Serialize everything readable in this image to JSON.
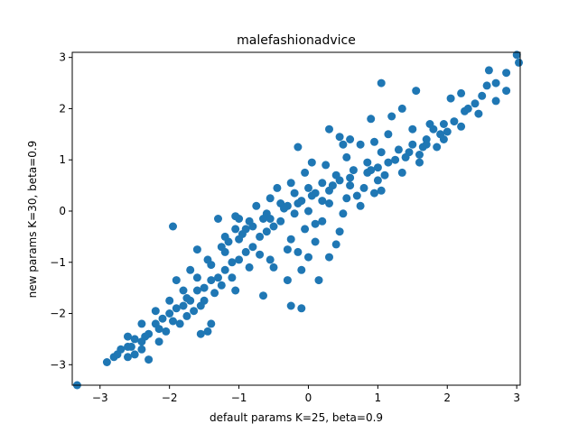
{
  "chart_data": {
    "type": "scatter",
    "title": "malefashionadvice",
    "xlabel": "default params K=25, beta=0.9",
    "ylabel": "new params K=30, beta=0.9",
    "xlim": [
      -3.4,
      3.05
    ],
    "ylim": [
      -3.4,
      3.1
    ],
    "xticks": [
      -3,
      -2,
      -1,
      0,
      1,
      2,
      3
    ],
    "yticks": [
      -3,
      -2,
      -1,
      0,
      1,
      2,
      3
    ],
    "xtick_labels": [
      "−3",
      "−2",
      "−1",
      "0",
      "1",
      "2",
      "3"
    ],
    "ytick_labels": [
      "−3",
      "−2",
      "−1",
      "0",
      "1",
      "2",
      "3"
    ],
    "grid": false,
    "marker_color": "#1f77b4",
    "series": [
      {
        "points": [
          [
            -3.33,
            -3.4
          ],
          [
            3.0,
            3.05
          ],
          [
            3.03,
            2.9
          ],
          [
            2.6,
            2.75
          ],
          [
            2.57,
            2.45
          ],
          [
            2.2,
            2.3
          ],
          [
            2.05,
            2.2
          ],
          [
            1.05,
            2.5
          ],
          [
            1.55,
            2.35
          ],
          [
            1.35,
            2.0
          ],
          [
            1.2,
            1.85
          ],
          [
            0.9,
            1.8
          ],
          [
            0.5,
            1.3
          ],
          [
            0.3,
            1.6
          ],
          [
            0.45,
            1.45
          ],
          [
            -0.15,
            1.25
          ],
          [
            0.6,
            1.4
          ],
          [
            1.15,
            1.5
          ],
          [
            1.5,
            1.6
          ],
          [
            1.75,
            1.7
          ],
          [
            2.0,
            1.55
          ],
          [
            1.95,
            1.7
          ],
          [
            2.25,
            1.95
          ],
          [
            1.8,
            1.6
          ],
          [
            1.5,
            1.3
          ],
          [
            1.3,
            1.2
          ],
          [
            1.6,
            1.1
          ],
          [
            1.7,
            1.4
          ],
          [
            1.1,
            0.7
          ],
          [
            1.0,
            0.6
          ],
          [
            1.05,
            0.4
          ],
          [
            0.9,
            0.8
          ],
          [
            0.7,
            0.3
          ],
          [
            0.6,
            0.5
          ],
          [
            0.45,
            0.6
          ],
          [
            0.3,
            0.4
          ],
          [
            0.2,
            0.2
          ],
          [
            0.1,
            0.35
          ],
          [
            0.0,
            0.0
          ],
          [
            -0.1,
            0.2
          ],
          [
            -0.2,
            -0.05
          ],
          [
            -0.3,
            0.1
          ],
          [
            -0.4,
            -0.2
          ],
          [
            -0.5,
            -0.3
          ],
          [
            -0.6,
            -0.4
          ],
          [
            -0.7,
            -0.5
          ],
          [
            -0.8,
            -0.7
          ],
          [
            -0.9,
            -0.8
          ],
          [
            -1.0,
            -0.95
          ],
          [
            -1.1,
            -1.0
          ],
          [
            -1.2,
            -1.15
          ],
          [
            -1.3,
            -1.3
          ],
          [
            -1.4,
            -1.35
          ],
          [
            -1.5,
            -1.5
          ],
          [
            -1.6,
            -1.55
          ],
          [
            -1.7,
            -1.75
          ],
          [
            -1.8,
            -1.85
          ],
          [
            -1.9,
            -1.9
          ],
          [
            -2.0,
            -2.0
          ],
          [
            -2.1,
            -2.1
          ],
          [
            -2.2,
            -2.2
          ],
          [
            -2.3,
            -2.4
          ],
          [
            -2.4,
            -2.55
          ],
          [
            -2.5,
            -2.5
          ],
          [
            -2.6,
            -2.65
          ],
          [
            -2.7,
            -2.7
          ],
          [
            -2.8,
            -2.85
          ],
          [
            -2.9,
            -2.95
          ],
          [
            -2.6,
            -2.85
          ],
          [
            -2.4,
            -2.7
          ],
          [
            -2.3,
            -2.9
          ],
          [
            -2.5,
            -2.8
          ],
          [
            -2.15,
            -2.55
          ],
          [
            -2.05,
            -2.35
          ],
          [
            -1.85,
            -2.2
          ],
          [
            -1.55,
            -2.4
          ],
          [
            -1.45,
            -2.35
          ],
          [
            -1.4,
            -2.2
          ],
          [
            -1.65,
            -1.95
          ],
          [
            -1.75,
            -1.7
          ],
          [
            -1.5,
            -1.75
          ],
          [
            -1.25,
            -1.45
          ],
          [
            -1.05,
            -1.55
          ],
          [
            -0.65,
            -1.65
          ],
          [
            -0.25,
            -1.85
          ],
          [
            -0.1,
            -1.9
          ],
          [
            0.15,
            -1.35
          ],
          [
            0.3,
            -0.9
          ],
          [
            0.4,
            -0.65
          ],
          [
            0.45,
            -0.4
          ],
          [
            0.1,
            -0.6
          ],
          [
            -0.15,
            -0.8
          ],
          [
            0.0,
            -0.9
          ],
          [
            -0.25,
            -0.55
          ],
          [
            -0.55,
            -0.15
          ],
          [
            -0.85,
            -0.2
          ],
          [
            -1.05,
            -0.35
          ],
          [
            -1.25,
            -0.7
          ],
          [
            -1.6,
            -0.75
          ],
          [
            -1.95,
            -0.3
          ],
          [
            -1.3,
            -0.15
          ],
          [
            -1.2,
            -0.5
          ],
          [
            -1.0,
            -0.15
          ],
          [
            -0.75,
            0.1
          ],
          [
            -0.55,
            0.25
          ],
          [
            -0.45,
            0.45
          ],
          [
            -0.25,
            0.55
          ],
          [
            -0.05,
            0.75
          ],
          [
            0.05,
            0.95
          ],
          [
            0.25,
            0.9
          ],
          [
            0.55,
            1.05
          ],
          [
            0.75,
            1.3
          ],
          [
            0.95,
            1.35
          ],
          [
            1.05,
            1.15
          ],
          [
            0.85,
            0.95
          ],
          [
            0.65,
            0.8
          ],
          [
            0.4,
            0.7
          ],
          [
            0.2,
            0.55
          ],
          [
            0.0,
            0.45
          ],
          [
            -0.2,
            0.35
          ],
          [
            -0.4,
            0.15
          ],
          [
            -0.6,
            -0.05
          ],
          [
            -0.8,
            -0.3
          ],
          [
            -1.0,
            -0.55
          ],
          [
            -1.2,
            -0.8
          ],
          [
            -1.4,
            -1.05
          ],
          [
            -1.6,
            -1.3
          ],
          [
            -1.8,
            -1.55
          ],
          [
            -2.0,
            -1.75
          ],
          [
            -2.2,
            -1.95
          ],
          [
            -2.4,
            -2.2
          ],
          [
            -2.6,
            -2.45
          ],
          [
            -1.05,
            -0.1
          ],
          [
            -0.95,
            -0.45
          ],
          [
            -0.7,
            -0.85
          ],
          [
            -0.5,
            -1.1
          ],
          [
            -0.3,
            -1.35
          ],
          [
            -0.1,
            -1.15
          ],
          [
            0.1,
            -0.25
          ],
          [
            0.3,
            0.15
          ],
          [
            0.55,
            0.25
          ],
          [
            0.8,
            0.45
          ],
          [
            1.0,
            0.85
          ],
          [
            1.25,
            1.0
          ],
          [
            1.45,
            1.15
          ],
          [
            1.7,
            1.3
          ],
          [
            1.9,
            1.5
          ],
          [
            2.1,
            1.75
          ],
          [
            2.3,
            2.0
          ],
          [
            2.5,
            2.25
          ],
          [
            2.7,
            2.5
          ],
          [
            2.85,
            2.7
          ],
          [
            2.4,
            2.1
          ],
          [
            1.85,
            1.25
          ],
          [
            1.6,
            0.95
          ],
          [
            1.35,
            0.75
          ],
          [
            0.95,
            0.35
          ],
          [
            0.75,
            0.1
          ],
          [
            0.5,
            -0.05
          ],
          [
            0.2,
            -0.2
          ],
          [
            -0.05,
            -0.35
          ],
          [
            -0.3,
            -0.75
          ],
          [
            -0.55,
            -0.95
          ],
          [
            -0.85,
            -1.1
          ],
          [
            -1.1,
            -1.3
          ],
          [
            -1.35,
            -1.6
          ],
          [
            -1.55,
            -1.85
          ],
          [
            -1.75,
            -2.05
          ],
          [
            -1.95,
            -2.15
          ],
          [
            -2.15,
            -2.3
          ],
          [
            -2.35,
            -2.45
          ],
          [
            -2.55,
            -2.65
          ],
          [
            -2.75,
            -2.8
          ],
          [
            -1.9,
            -1.35
          ],
          [
            -1.7,
            -1.15
          ],
          [
            -1.45,
            -0.95
          ],
          [
            -1.15,
            -0.6
          ],
          [
            -0.9,
            -0.35
          ],
          [
            -0.65,
            -0.15
          ],
          [
            -0.35,
            0.05
          ],
          [
            -0.15,
            0.15
          ],
          [
            0.05,
            0.3
          ],
          [
            0.35,
            0.5
          ],
          [
            0.6,
            0.65
          ],
          [
            0.85,
            0.75
          ],
          [
            1.15,
            0.95
          ],
          [
            1.4,
            1.05
          ],
          [
            1.65,
            1.25
          ],
          [
            1.95,
            1.4
          ],
          [
            2.2,
            1.65
          ],
          [
            2.45,
            1.9
          ],
          [
            2.7,
            2.15
          ],
          [
            2.85,
            2.35
          ]
        ]
      }
    ]
  }
}
